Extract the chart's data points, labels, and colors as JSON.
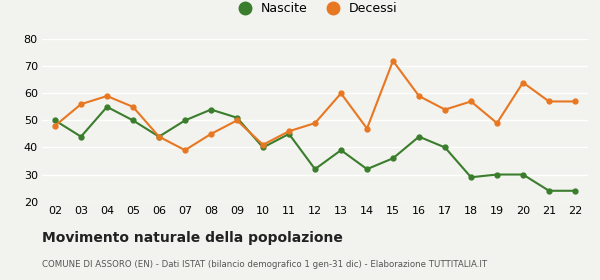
{
  "years": [
    "02",
    "03",
    "04",
    "05",
    "06",
    "07",
    "08",
    "09",
    "10",
    "11",
    "12",
    "13",
    "14",
    "15",
    "16",
    "17",
    "18",
    "19",
    "20",
    "21",
    "22"
  ],
  "nascite": [
    50,
    44,
    55,
    50,
    44,
    50,
    54,
    51,
    40,
    45,
    32,
    39,
    32,
    36,
    44,
    40,
    29,
    30,
    30,
    24,
    24
  ],
  "decessi": [
    48,
    56,
    59,
    55,
    44,
    39,
    45,
    50,
    41,
    46,
    49,
    60,
    47,
    72,
    59,
    54,
    57,
    49,
    64,
    57,
    57
  ],
  "nascite_color": "#3a7d2c",
  "decessi_color": "#e87722",
  "background_color": "#f2f2ee",
  "grid_color": "#ffffff",
  "title": "Movimento naturale della popolazione",
  "subtitle": "COMUNE DI ASSORO (EN) - Dati ISTAT (bilancio demografico 1 gen-31 dic) - Elaborazione TUTTITALIA.IT",
  "legend_nascite": "Nascite",
  "legend_decessi": "Decessi",
  "ylim": [
    20,
    80
  ],
  "yticks": [
    20,
    30,
    40,
    50,
    60,
    70,
    80
  ]
}
